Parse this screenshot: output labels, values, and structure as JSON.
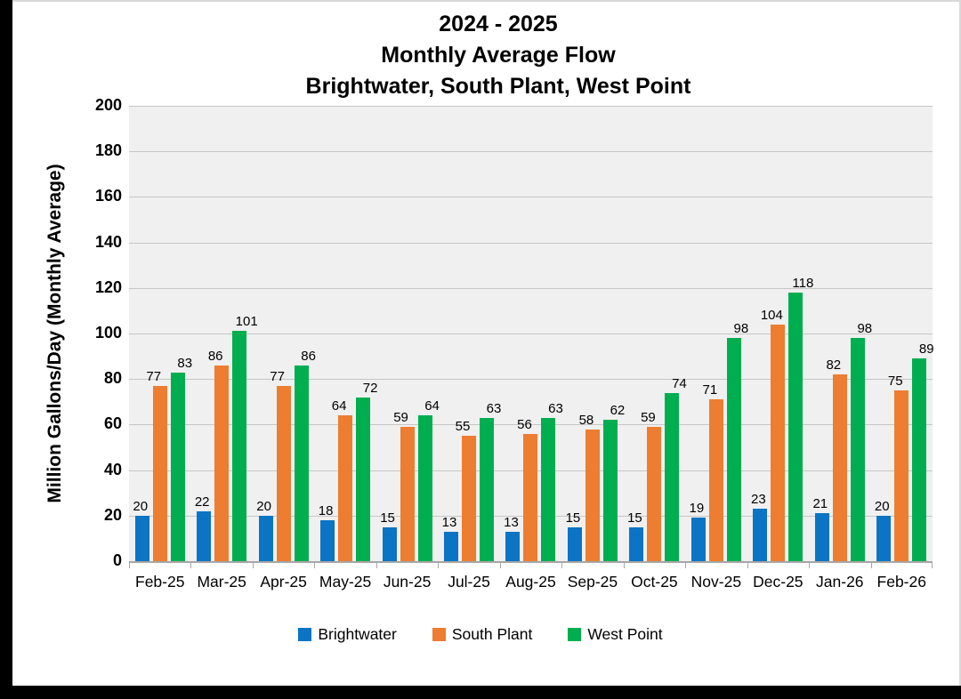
{
  "chart_data": {
    "type": "bar",
    "title_lines": [
      "2024 - 2025",
      "Monthly Average Flow",
      "Brightwater, South Plant, West Point"
    ],
    "ylabel": "Million Gallons/Day (Monthly Average)",
    "ylim": [
      0,
      200
    ],
    "ytick_step": 20,
    "yticks": [
      0,
      20,
      40,
      60,
      80,
      100,
      120,
      140,
      160,
      180,
      200
    ],
    "grid": true,
    "data_labels": true,
    "legend_position": "bottom",
    "plot_bg_color": "#f0f0f0",
    "gridline_color": "#c6c6c6",
    "categories": [
      "Feb-25",
      "Mar-25",
      "Apr-25",
      "May-25",
      "Jun-25",
      "Jul-25",
      "Aug-25",
      "Sep-25",
      "Oct-25",
      "Nov-25",
      "Dec-25",
      "Jan-26",
      "Feb-26"
    ],
    "series": [
      {
        "name": "Brightwater",
        "color": "#0b74c4",
        "values": [
          20,
          22,
          20,
          18,
          15,
          13,
          13,
          15,
          15,
          19,
          23,
          21,
          20
        ]
      },
      {
        "name": "South Plant",
        "color": "#ed7d31",
        "values": [
          77,
          86,
          77,
          64,
          59,
          55,
          56,
          58,
          59,
          71,
          104,
          82,
          75
        ]
      },
      {
        "name": "West Point",
        "color": "#00ae50",
        "values": [
          83,
          101,
          86,
          72,
          64,
          63,
          63,
          62,
          74,
          98,
          118,
          98,
          89
        ]
      }
    ]
  }
}
